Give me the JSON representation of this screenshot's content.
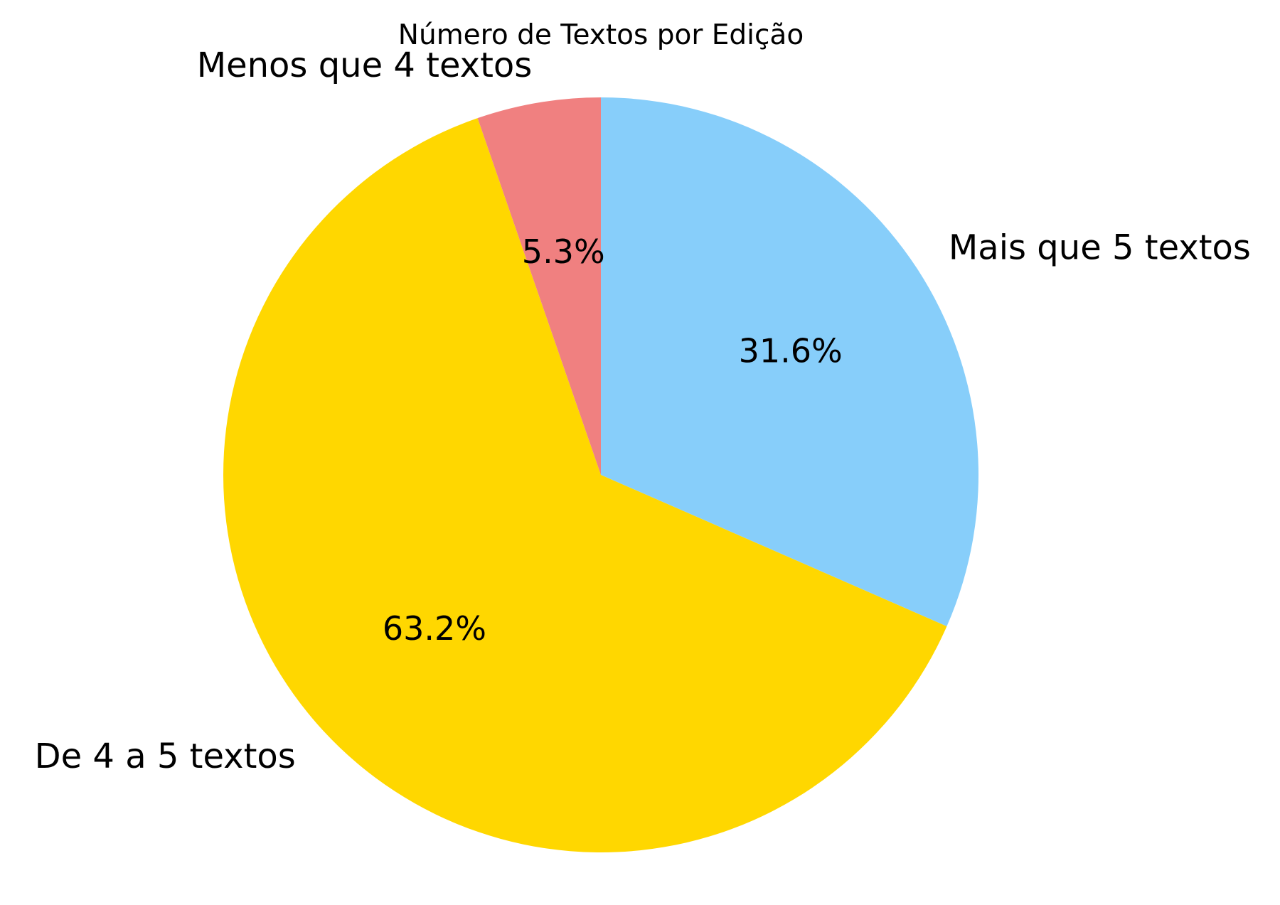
{
  "chart_data": {
    "type": "pie",
    "title": "Número de Textos por Edição",
    "start_angle_deg": 90,
    "direction": "clockwise",
    "slices": [
      {
        "label": "Mais que 5 textos",
        "value": 31.6,
        "pct_label": "31.6%",
        "color": "#87CEFA"
      },
      {
        "label": "De 4 a 5 textos",
        "value": 63.2,
        "pct_label": "63.2%",
        "color": "#FFD700"
      },
      {
        "label": "Menos que 4 textos",
        "value": 5.3,
        "pct_label": "5.3%",
        "color": "#F08080"
      }
    ]
  }
}
